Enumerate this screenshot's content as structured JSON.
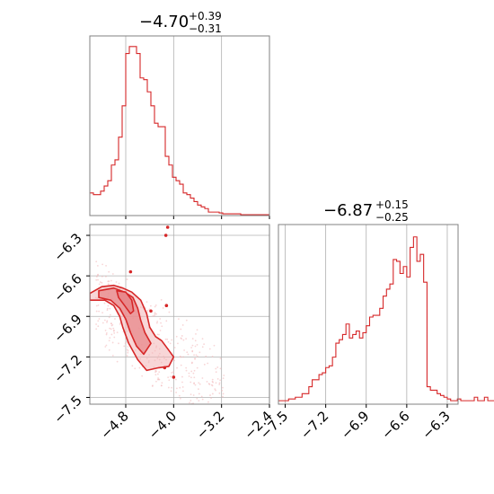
{
  "chart_data": {
    "type": "corner",
    "colors": {
      "main": "#d62728",
      "fill": "#e8878a",
      "light": "#f2b5b7",
      "grid": "#b0b0b0",
      "frame": "#808080"
    },
    "grid": true,
    "parameters": [
      {
        "title": {
          "value": "−4.70",
          "upper": "+0.39",
          "lower": "−0.31"
        },
        "range": [
          -5.4,
          -2.4
        ],
        "ticks": [
          -4.8,
          -4.0,
          -3.2,
          -2.4
        ],
        "tick_labels": [
          "−4.8",
          "−4.0",
          "−3.2",
          "−2.4"
        ]
      },
      {
        "title": {
          "value": "−6.87",
          "upper": "+0.15",
          "lower": "−0.25"
        },
        "range": [
          -7.55,
          -6.22
        ],
        "ticks": [
          -7.5,
          -7.2,
          -6.9,
          -6.6,
          -6.3
        ],
        "tick_labels": [
          "−7.5",
          "−7.2",
          "−6.9",
          "−6.6",
          "−6.3"
        ]
      }
    ],
    "hist1": {
      "edges_start": -5.4,
      "bin_width": 0.06,
      "counts": [
        0.13,
        0.12,
        0.12,
        0.14,
        0.17,
        0.2,
        0.29,
        0.32,
        0.45,
        0.63,
        0.93,
        0.97,
        0.97,
        0.93,
        0.79,
        0.78,
        0.71,
        0.63,
        0.53,
        0.51,
        0.51,
        0.34,
        0.29,
        0.22,
        0.2,
        0.18,
        0.13,
        0.12,
        0.1,
        0.08,
        0.06,
        0.05,
        0.04,
        0.02,
        0.02,
        0.02,
        0.015,
        0.01,
        0.01,
        0.01,
        0.01,
        0.01,
        0.005,
        0.005,
        0.005,
        0.005,
        0.005,
        0.005,
        0.005,
        0.005
      ]
    },
    "hist2": {
      "edges_start": -7.55,
      "bin_width": 0.025,
      "counts": [
        0.02,
        0.02,
        0.02,
        0.03,
        0.03,
        0.04,
        0.04,
        0.06,
        0.06,
        0.1,
        0.14,
        0.14,
        0.17,
        0.18,
        0.21,
        0.22,
        0.27,
        0.35,
        0.37,
        0.4,
        0.46,
        0.38,
        0.4,
        0.42,
        0.38,
        0.41,
        0.45,
        0.5,
        0.51,
        0.51,
        0.55,
        0.62,
        0.66,
        0.69,
        0.83,
        0.82,
        0.75,
        0.79,
        0.73,
        0.9,
        0.96,
        0.82,
        0.86,
        0.7,
        0.1,
        0.08,
        0.08,
        0.06,
        0.05,
        0.04,
        0.03,
        0.02,
        0.02,
        0.03,
        0.02,
        0.02,
        0.02,
        0.02,
        0.04,
        0.02,
        0.02,
        0.04,
        0.02,
        0.02
      ]
    },
    "contours": [
      {
        "level": "outer",
        "points": [
          [
            -5.4,
            -6.73
          ],
          [
            -5.2,
            -6.68
          ],
          [
            -5.0,
            -6.67
          ],
          [
            -4.85,
            -6.69
          ],
          [
            -4.7,
            -6.72
          ],
          [
            -4.55,
            -6.78
          ],
          [
            -4.45,
            -6.88
          ],
          [
            -4.4,
            -6.98
          ],
          [
            -4.3,
            -7.05
          ],
          [
            -4.2,
            -7.08
          ],
          [
            -4.1,
            -7.14
          ],
          [
            -4.0,
            -7.2
          ],
          [
            -4.08,
            -7.27
          ],
          [
            -4.25,
            -7.28
          ],
          [
            -4.45,
            -7.3
          ],
          [
            -4.6,
            -7.22
          ],
          [
            -4.75,
            -7.1
          ],
          [
            -4.85,
            -6.98
          ],
          [
            -4.9,
            -6.9
          ],
          [
            -5.0,
            -6.82
          ],
          [
            -5.15,
            -6.78
          ],
          [
            -5.4,
            -6.78
          ]
        ]
      },
      {
        "level": "mid",
        "points": [
          [
            -5.25,
            -6.71
          ],
          [
            -5.0,
            -6.69
          ],
          [
            -4.82,
            -6.72
          ],
          [
            -4.68,
            -6.76
          ],
          [
            -4.6,
            -6.84
          ],
          [
            -4.55,
            -6.93
          ],
          [
            -4.48,
            -7.02
          ],
          [
            -4.38,
            -7.1
          ],
          [
            -4.5,
            -7.18
          ],
          [
            -4.62,
            -7.12
          ],
          [
            -4.72,
            -7.02
          ],
          [
            -4.8,
            -6.92
          ],
          [
            -4.9,
            -6.84
          ],
          [
            -5.05,
            -6.78
          ],
          [
            -5.25,
            -6.76
          ]
        ]
      },
      {
        "level": "inner",
        "points": [
          [
            -4.95,
            -6.71
          ],
          [
            -4.8,
            -6.72
          ],
          [
            -4.7,
            -6.78
          ],
          [
            -4.67,
            -6.86
          ],
          [
            -4.72,
            -6.88
          ],
          [
            -4.82,
            -6.82
          ],
          [
            -4.92,
            -6.76
          ]
        ]
      }
    ],
    "outlier_points": [
      [
        -4.1,
        -6.24
      ],
      [
        -4.13,
        -6.3
      ],
      [
        -4.72,
        -6.57
      ],
      [
        -4.12,
        -6.82
      ],
      [
        -4.38,
        -6.86
      ],
      [
        -4.0,
        -7.35
      ],
      [
        -4.15,
        -7.28
      ]
    ]
  }
}
